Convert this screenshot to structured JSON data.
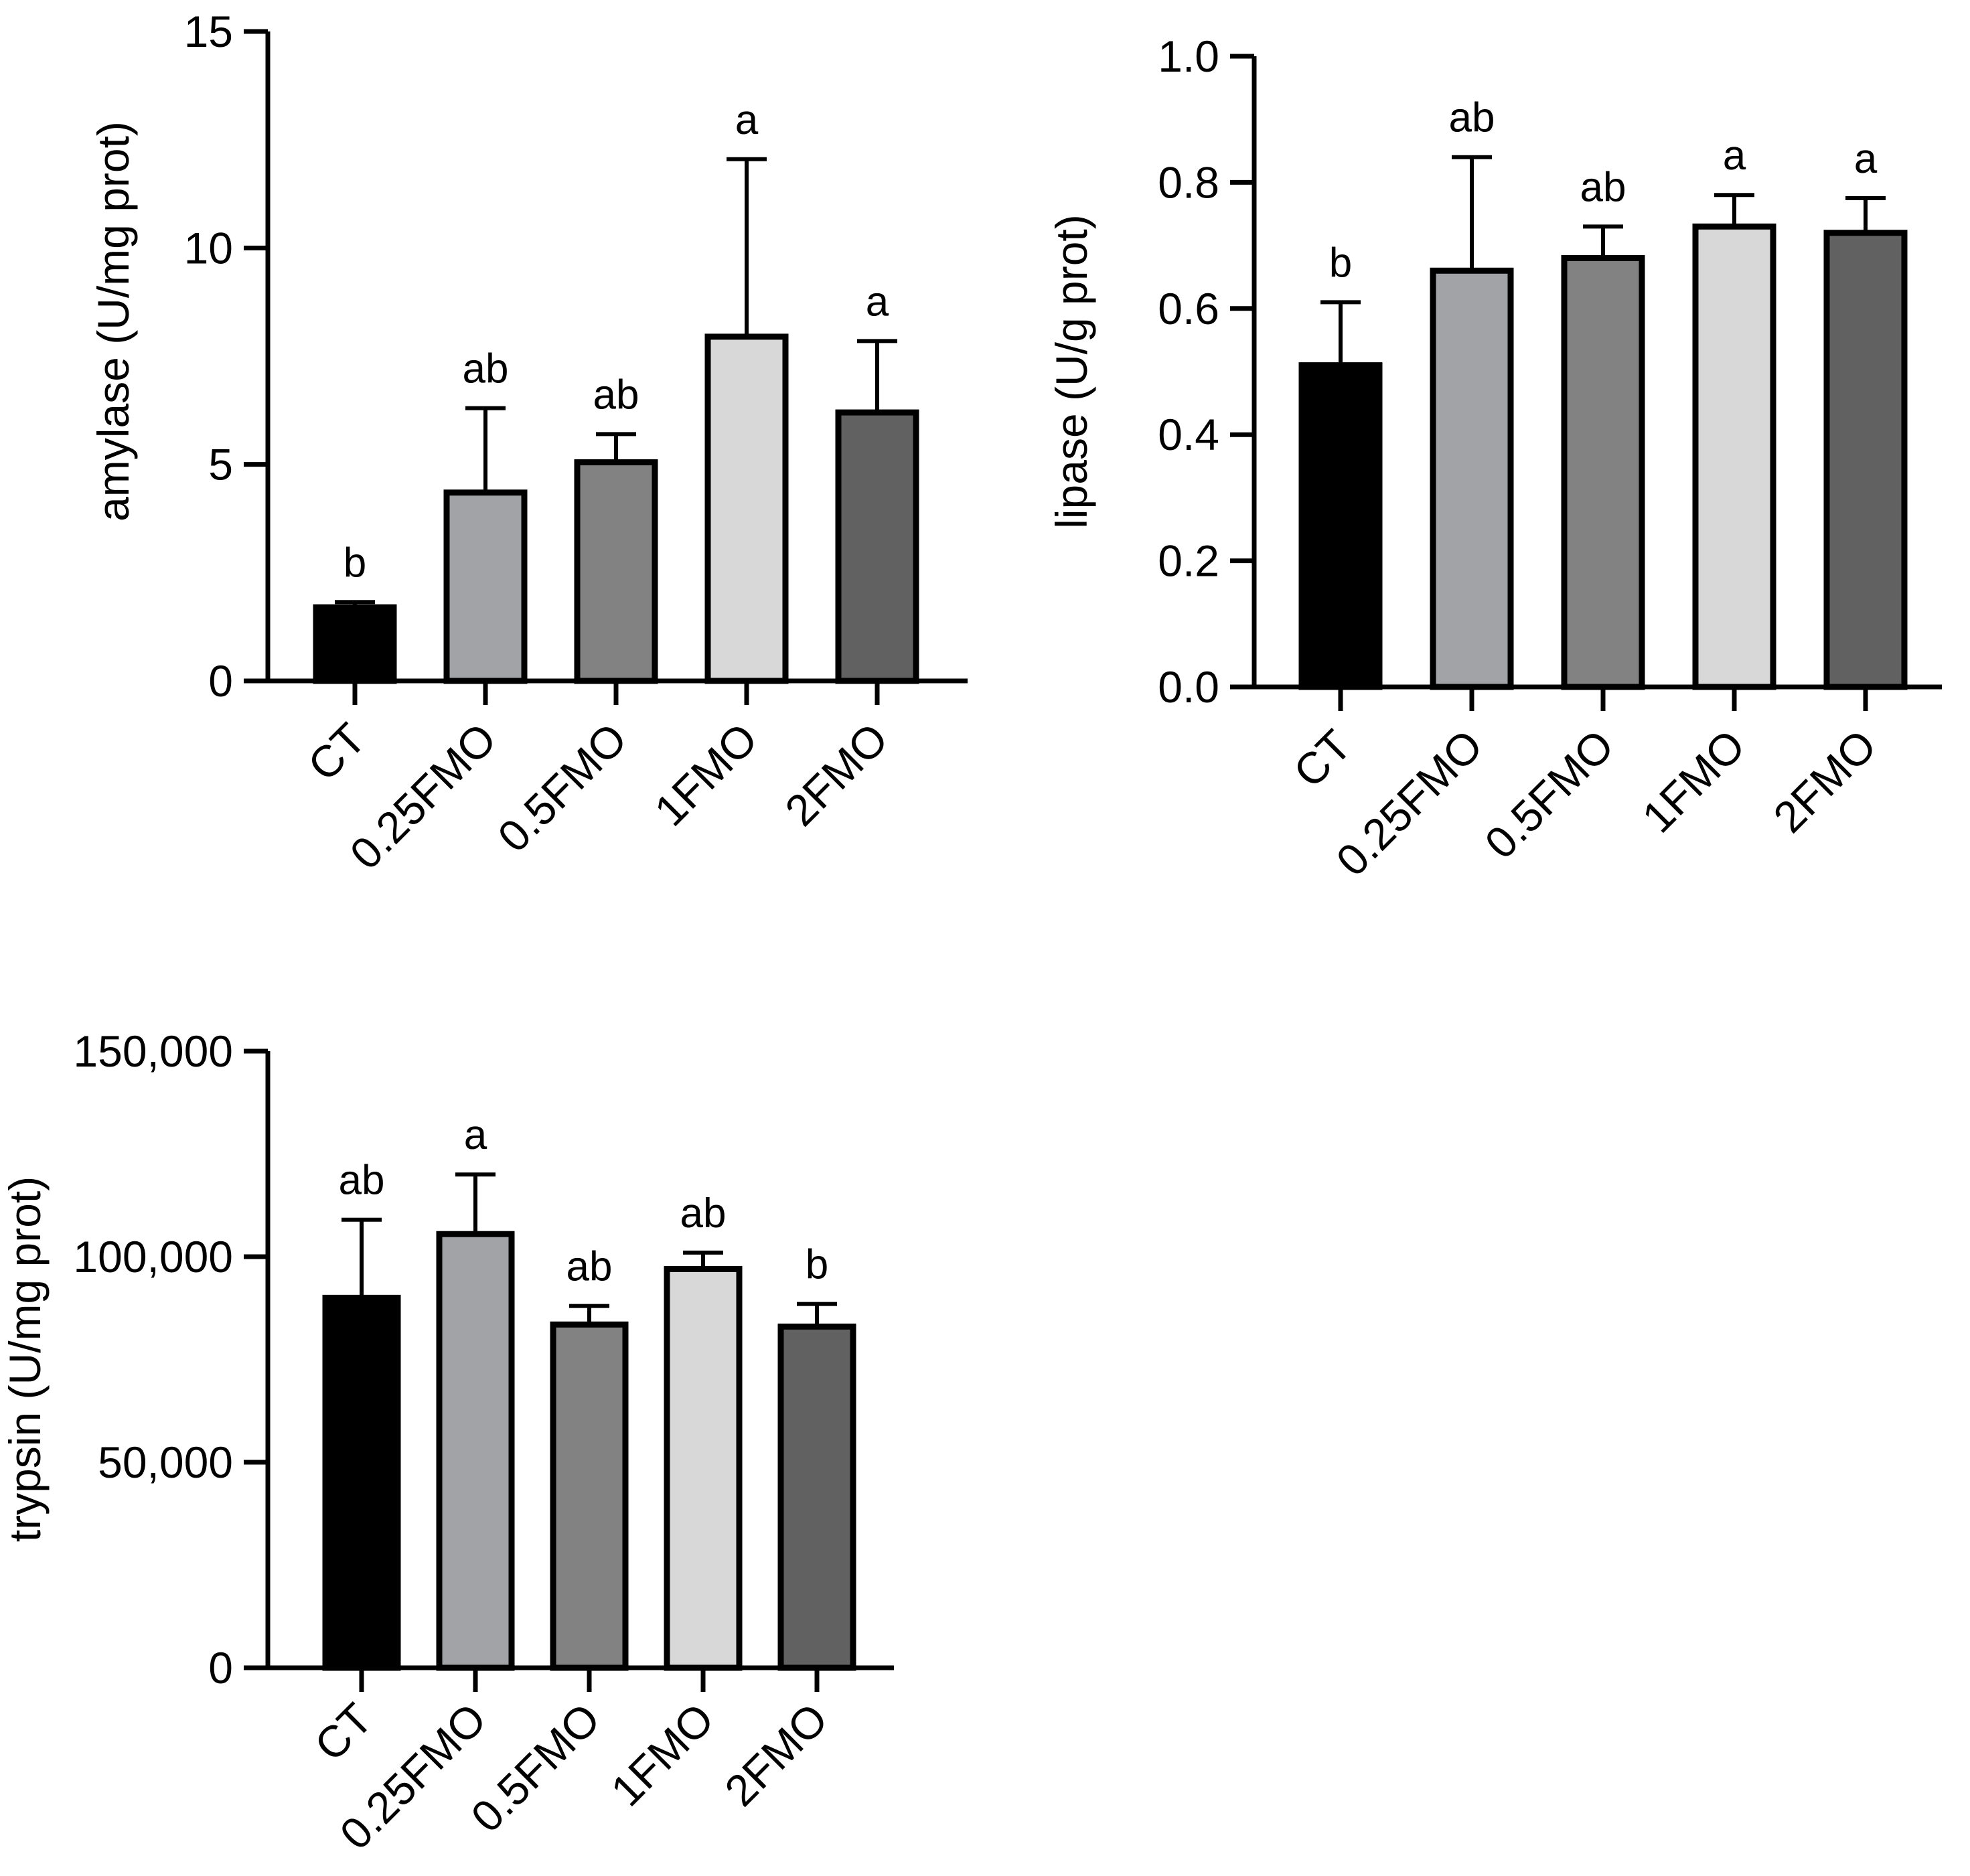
{
  "chart_data": [
    {
      "id": "amylase",
      "type": "bar",
      "title": "",
      "xlabel": "",
      "ylabel": "amylase (U/mg prot)",
      "ylim": [
        0,
        15
      ],
      "yticks": [
        0,
        5,
        10,
        15
      ],
      "ytick_labels": [
        "0",
        "5",
        "10",
        "15"
      ],
      "categories": [
        "CT",
        "0.25FMO",
        "0.5FMO",
        "1FMO",
        "2FMO"
      ],
      "values": [
        1.7,
        4.35,
        5.05,
        7.95,
        6.2
      ],
      "errors": [
        0.12,
        1.95,
        0.65,
        4.1,
        1.65
      ],
      "significance": [
        "b",
        "ab",
        "ab",
        "a",
        "a"
      ],
      "colors": [
        "#000000",
        "#a2a3a6",
        "#828282",
        "#d8d8d8",
        "#616161"
      ],
      "grid": false
    },
    {
      "id": "lipase",
      "type": "bar",
      "title": "",
      "xlabel": "",
      "ylabel": "lipase (U/g prot)",
      "ylim": [
        0,
        1.0
      ],
      "yticks": [
        0,
        0.2,
        0.4,
        0.6,
        0.8,
        1.0
      ],
      "ytick_labels": [
        "0.0",
        "0.2",
        "0.4",
        "0.6",
        "0.8",
        "1.0"
      ],
      "categories": [
        "CT",
        "0.25FMO",
        "0.5FMO",
        "1FMO",
        "2FMO"
      ],
      "values": [
        0.51,
        0.66,
        0.68,
        0.73,
        0.72
      ],
      "errors": [
        0.1,
        0.18,
        0.05,
        0.05,
        0.055
      ],
      "significance": [
        "b",
        "ab",
        "ab",
        "a",
        "a"
      ],
      "colors": [
        "#000000",
        "#a2a3a6",
        "#828282",
        "#d8d8d8",
        "#616161"
      ],
      "grid": false
    },
    {
      "id": "trypsin",
      "type": "bar",
      "title": "",
      "xlabel": "",
      "ylabel": "trypsin (U/mg prot)",
      "ylim": [
        0,
        150000
      ],
      "yticks": [
        0,
        50000,
        100000,
        150000
      ],
      "ytick_labels": [
        "0",
        "50,000",
        "100,000",
        "150,000"
      ],
      "categories": [
        "CT",
        "0.25FMO",
        "0.5FMO",
        "1FMO",
        "2FMO"
      ],
      "values": [
        90000,
        105500,
        83500,
        97000,
        83000
      ],
      "errors": [
        19000,
        14500,
        4500,
        4000,
        5500
      ],
      "significance": [
        "ab",
        "a",
        "ab",
        "ab",
        "b"
      ],
      "colors": [
        "#000000",
        "#a2a3a6",
        "#828282",
        "#d8d8d8",
        "#616161"
      ],
      "grid": false
    }
  ]
}
